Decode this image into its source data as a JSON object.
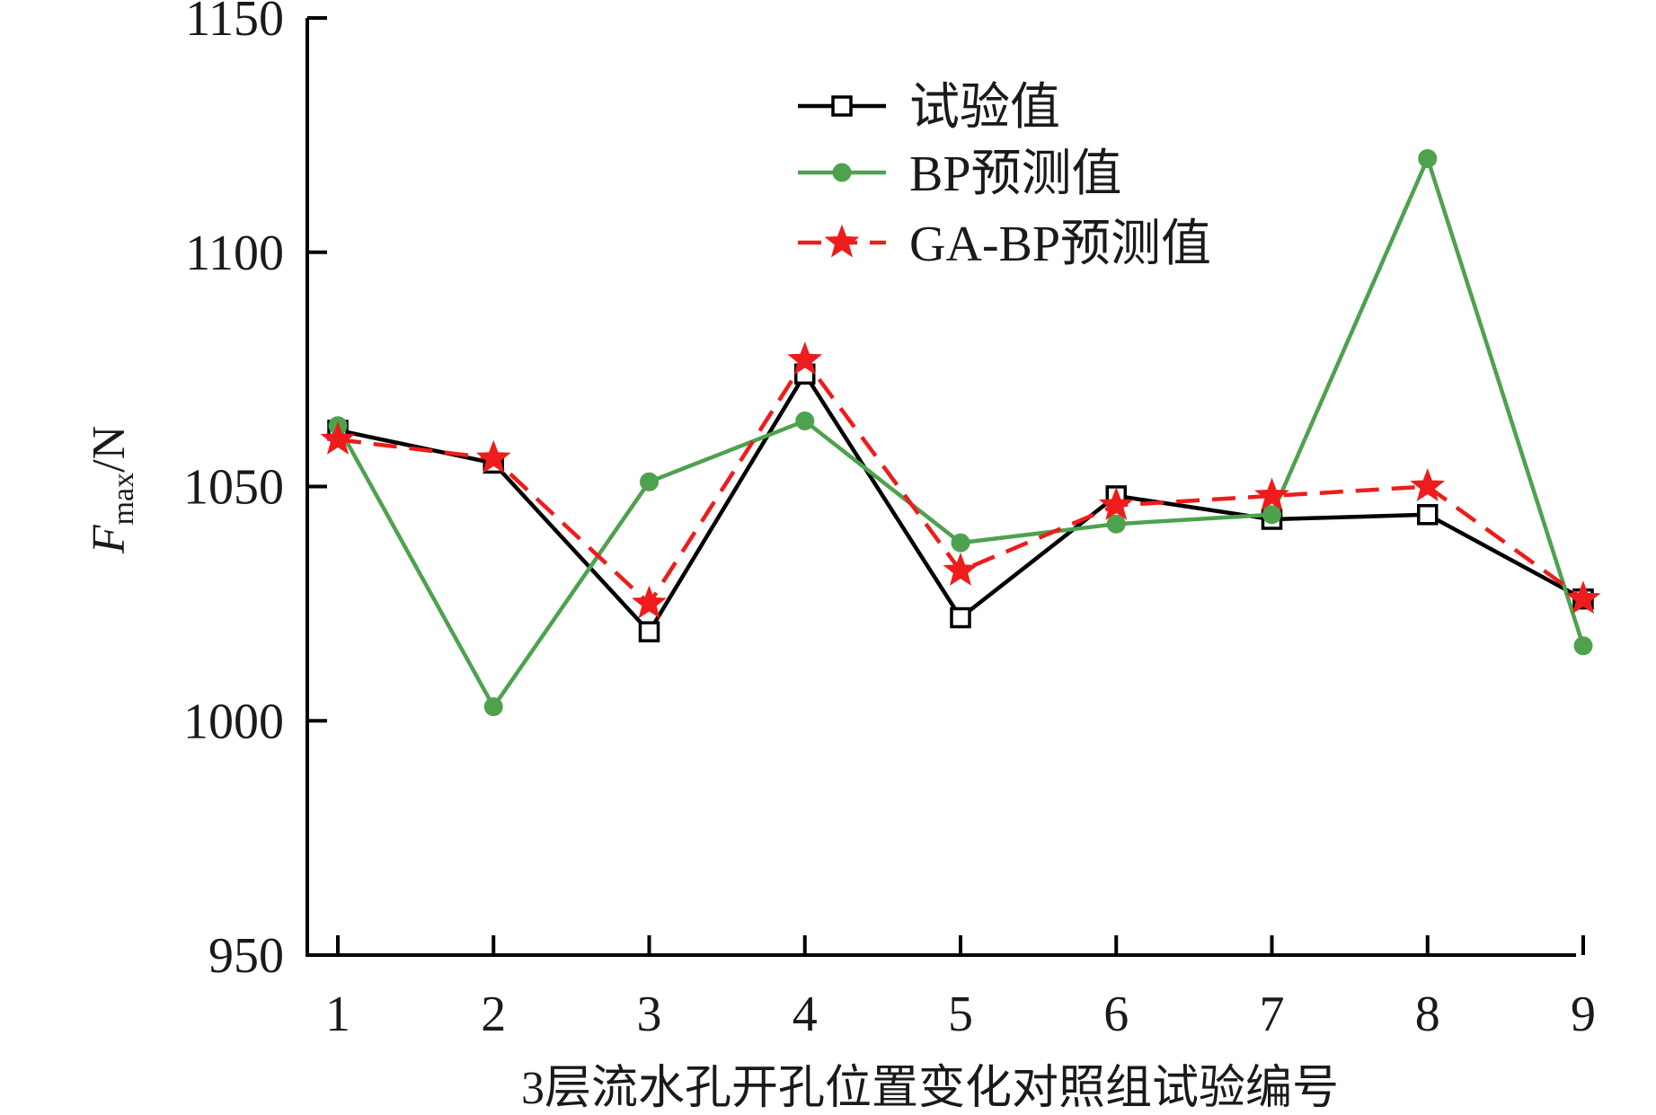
{
  "chart_data": {
    "type": "line",
    "xlabel": "3层流水孔开孔位置变化对照组试验编号",
    "ylabel": "F",
    "ylabel_sub": "max",
    "ylabel_unit": "/N",
    "categories": [
      "1",
      "2",
      "3",
      "4",
      "5",
      "6",
      "7",
      "8",
      "9"
    ],
    "ylim": [
      950,
      1150
    ],
    "yticks": [
      "950",
      "1000",
      "1050",
      "1100",
      "1150"
    ],
    "grid": false,
    "legend_position": "top-center",
    "series": [
      {
        "name": "试验值",
        "values": [
          1062,
          1055,
          1019,
          1074,
          1022,
          1048,
          1043,
          1044,
          1026
        ],
        "color": "#000000",
        "marker": "hollow-square",
        "dash": "solid"
      },
      {
        "name": "BP预测值",
        "values": [
          1063,
          1003,
          1051,
          1064,
          1038,
          1042,
          1044,
          1120,
          1016
        ],
        "color": "#4ea24e",
        "marker": "filled-circle",
        "dash": "solid"
      },
      {
        "name": "GA-BP预测值",
        "values": [
          1060,
          1056,
          1025,
          1077,
          1032,
          1046,
          1048,
          1050,
          1026
        ],
        "color": "#ee1c1c",
        "marker": "star",
        "dash": "dashed"
      }
    ]
  }
}
